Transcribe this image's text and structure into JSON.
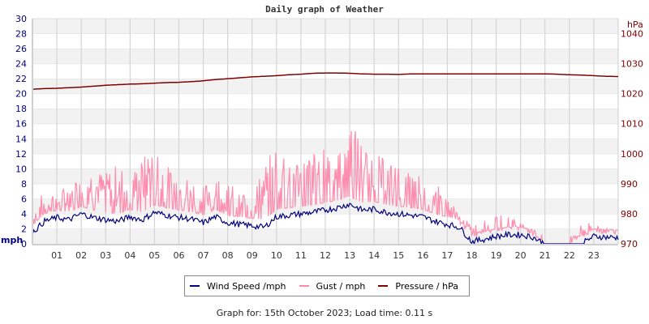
{
  "title": "Daily graph of Weather",
  "legend": [
    {
      "label": "Wind Speed /mph",
      "color": "#00007f"
    },
    {
      "label": "Gust / mph",
      "color": "#ff88aa"
    },
    {
      "label": "Pressure / hPa",
      "color": "#7f0000"
    }
  ],
  "footer": "Graph for: 15th October 2023; Load time: 0.11 s",
  "chart_data": {
    "type": "line",
    "title": "Daily graph of Weather",
    "xlabel": "",
    "ylabel": "mph",
    "y2label": "hPa",
    "ylim": [
      0,
      30
    ],
    "y2lim": [
      970,
      1045
    ],
    "xlim": [
      0,
      24
    ],
    "grid": true,
    "legend_position": "bottom",
    "x_ticks": [
      "01",
      "02",
      "03",
      "04",
      "05",
      "06",
      "07",
      "08",
      "09",
      "10",
      "11",
      "12",
      "13",
      "14",
      "15",
      "16",
      "17",
      "18",
      "19",
      "20",
      "21",
      "22",
      "23"
    ],
    "y_ticks": [
      0,
      2,
      4,
      6,
      8,
      10,
      12,
      14,
      16,
      18,
      20,
      22,
      24,
      26,
      28,
      30
    ],
    "y2_ticks": [
      970,
      980,
      990,
      1000,
      1010,
      1020,
      1030,
      1040
    ],
    "x": [
      0,
      0.5,
      1,
      1.5,
      2,
      2.5,
      3,
      3.5,
      4,
      4.5,
      5,
      5.5,
      6,
      6.5,
      7,
      7.5,
      8,
      8.5,
      9,
      9.5,
      10,
      10.5,
      11,
      11.5,
      12,
      12.5,
      13,
      13.5,
      14,
      14.5,
      15,
      15.5,
      16,
      16.5,
      17,
      17.5,
      18,
      18.5,
      19,
      19.5,
      20,
      20.5,
      21,
      21.5,
      22,
      22.5,
      23,
      23.5,
      24
    ],
    "series": [
      {
        "name": "Wind Speed /mph",
        "axis": "left",
        "color": "#00007f",
        "values": [
          1.5,
          3.0,
          3.5,
          3.2,
          4.0,
          3.5,
          3.2,
          3.0,
          3.6,
          3.2,
          4.2,
          3.8,
          3.5,
          3.3,
          2.8,
          3.6,
          2.8,
          2.6,
          2.4,
          2.2,
          3.6,
          3.8,
          4.0,
          4.2,
          4.5,
          4.8,
          5.3,
          4.5,
          4.6,
          4.2,
          4.0,
          3.8,
          3.6,
          3.0,
          2.6,
          2.2,
          0.3,
          0.6,
          1.0,
          1.2,
          1.2,
          0.9,
          0.0,
          0.0,
          0.0,
          0.0,
          1.0,
          0.9,
          0.8
        ]
      },
      {
        "name": "Gust / mph",
        "axis": "left",
        "color": "#ff88aa",
        "values": [
          3.5,
          6.5,
          6.0,
          7.0,
          9.0,
          8.5,
          8.0,
          9.0,
          8.0,
          9.5,
          11.5,
          9.0,
          8.0,
          7.5,
          6.5,
          8.5,
          7.0,
          6.0,
          6.0,
          8.5,
          11.5,
          10.5,
          9.5,
          10.5,
          11.0,
          11.5,
          15.0,
          11.5,
          10.5,
          9.5,
          9.0,
          8.0,
          8.0,
          7.0,
          5.5,
          3.5,
          2.0,
          2.5,
          3.0,
          3.5,
          2.5,
          1.5,
          0.0,
          0.0,
          0.0,
          2.0,
          2.5,
          2.0,
          1.5
        ]
      },
      {
        "name": "Pressure / hPa",
        "axis": "right",
        "color": "#7f0000",
        "values": [
          1021.5,
          1021.7,
          1021.8,
          1022.0,
          1022.2,
          1022.5,
          1022.8,
          1023.0,
          1023.2,
          1023.3,
          1023.5,
          1023.7,
          1023.8,
          1024.0,
          1024.3,
          1024.7,
          1025.0,
          1025.3,
          1025.6,
          1025.8,
          1026.0,
          1026.3,
          1026.5,
          1026.8,
          1026.9,
          1026.9,
          1026.8,
          1026.6,
          1026.5,
          1026.5,
          1026.4,
          1026.6,
          1026.6,
          1026.6,
          1026.6,
          1026.6,
          1026.6,
          1026.6,
          1026.6,
          1026.6,
          1026.6,
          1026.6,
          1026.6,
          1026.5,
          1026.3,
          1026.2,
          1026.0,
          1025.8,
          1025.7
        ]
      }
    ]
  }
}
